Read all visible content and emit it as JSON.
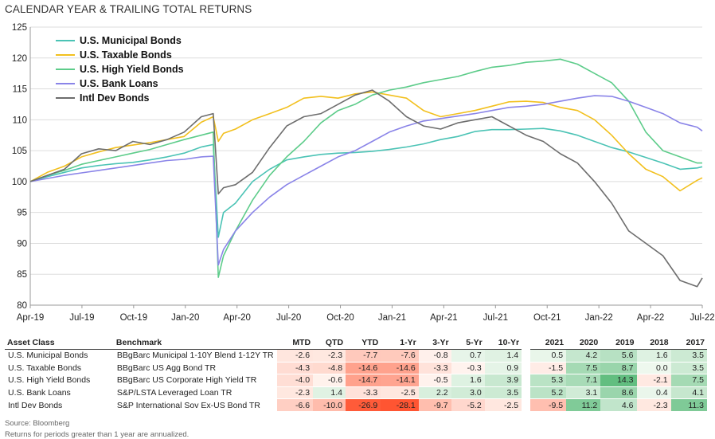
{
  "title": "CALENDAR YEAR & TRAILING TOTAL RETURNS",
  "legend": [
    {
      "label": "U.S.  Municipal Bonds",
      "color": "#4bc3b5"
    },
    {
      "label": "U.S. Taxable Bonds",
      "color": "#f2c01e"
    },
    {
      "label": "U.S. High Yield Bonds",
      "color": "#5dcc8a"
    },
    {
      "label": "U.S. Bank Loans",
      "color": "#8a84e8"
    },
    {
      "label": "Intl Dev Bonds",
      "color": "#6d6d6d"
    }
  ],
  "chart_data": {
    "type": "line",
    "ylim": [
      80,
      125
    ],
    "yticks": [
      80,
      85,
      90,
      95,
      100,
      105,
      110,
      115,
      120,
      125
    ],
    "xticks": [
      "Apr-19",
      "Jul-19",
      "Oct-19",
      "Jan-20",
      "Apr-20",
      "Jul-20",
      "Oct-20",
      "Jan-21",
      "Apr-21",
      "Jul-21",
      "Oct-21",
      "Jan-22",
      "Apr-22",
      "Jul-22"
    ],
    "x": [
      0,
      1,
      2,
      3,
      4,
      5,
      6,
      7,
      8,
      9,
      10,
      10.7,
      11,
      11.3,
      12,
      13,
      14,
      15,
      16,
      17,
      18,
      19,
      20,
      21,
      22,
      23,
      24,
      25,
      26,
      27,
      28,
      29,
      30,
      31,
      32,
      33,
      34,
      35,
      36,
      37,
      38,
      39,
      39.3
    ],
    "series": [
      {
        "name": "U.S.  Municipal Bonds",
        "values": [
          100.0,
          100.8,
          101.5,
          102.2,
          102.6,
          102.9,
          103.1,
          103.5,
          104.0,
          104.6,
          105.6,
          106.0,
          91.0,
          95.0,
          96.5,
          100.0,
          102.0,
          103.5,
          104.0,
          104.4,
          104.6,
          104.7,
          104.9,
          105.2,
          105.6,
          106.1,
          106.8,
          107.3,
          108.1,
          108.4,
          108.4,
          108.5,
          108.6,
          108.2,
          107.5,
          106.5,
          105.5,
          104.8,
          103.9,
          103.0,
          102.0,
          102.2,
          102.4
        ]
      },
      {
        "name": "U.S. Taxable Bonds",
        "values": [
          100.0,
          101.5,
          102.5,
          104.0,
          104.8,
          105.5,
          105.9,
          106.3,
          106.8,
          107.3,
          109.6,
          110.5,
          106.5,
          107.8,
          108.5,
          110.0,
          111.0,
          112.0,
          113.5,
          113.8,
          113.5,
          114.2,
          114.5,
          114.0,
          113.5,
          111.5,
          110.5,
          111.0,
          111.5,
          112.2,
          112.9,
          113.0,
          112.8,
          112.0,
          111.5,
          110.0,
          107.5,
          104.5,
          102.0,
          100.8,
          98.5,
          100.2,
          100.6
        ]
      },
      {
        "name": "U.S. High Yield Bonds",
        "values": [
          100.0,
          101.0,
          101.8,
          102.8,
          103.4,
          104.0,
          104.6,
          105.2,
          106.0,
          106.8,
          107.5,
          108.0,
          84.5,
          88.0,
          92.0,
          97.0,
          101.0,
          104.0,
          106.5,
          109.5,
          111.5,
          112.5,
          114.0,
          114.8,
          115.3,
          116.0,
          116.5,
          117.0,
          117.8,
          118.5,
          118.8,
          119.3,
          119.5,
          119.8,
          119.0,
          117.5,
          116.0,
          113.0,
          108.0,
          105.0,
          104.0,
          103.0,
          103.0
        ]
      },
      {
        "name": "U.S. Bank Loans",
        "values": [
          100.0,
          100.5,
          101.0,
          101.4,
          101.8,
          102.2,
          102.6,
          103.0,
          103.4,
          103.6,
          104.0,
          104.1,
          86.5,
          89.0,
          92.0,
          95.0,
          97.5,
          99.5,
          101.0,
          102.5,
          104.0,
          105.0,
          106.5,
          108.0,
          109.0,
          109.8,
          110.2,
          110.6,
          111.0,
          111.5,
          112.0,
          112.2,
          112.5,
          113.0,
          113.5,
          113.9,
          113.8,
          113.0,
          112.0,
          111.0,
          109.5,
          108.8,
          108.2
        ]
      },
      {
        "name": "Intl Dev Bonds",
        "values": [
          100.0,
          101.0,
          102.0,
          104.5,
          105.3,
          105.0,
          106.5,
          106.0,
          106.8,
          108.0,
          110.5,
          111.0,
          98.0,
          99.0,
          99.5,
          101.5,
          105.5,
          109.0,
          110.5,
          111.0,
          112.5,
          114.0,
          114.8,
          113.0,
          110.5,
          109.0,
          108.5,
          109.5,
          110.0,
          110.5,
          109.0,
          107.5,
          106.5,
          104.5,
          103.0,
          100.0,
          96.5,
          92.0,
          90.0,
          88.0,
          84.0,
          83.0,
          84.4
        ]
      }
    ]
  },
  "table": {
    "headers": [
      "Asset Class",
      "Benchmark",
      "MTD",
      "QTD",
      "YTD",
      "1-Yr",
      "3-Yr",
      "5-Yr",
      "10-Yr",
      "2021",
      "2020",
      "2019",
      "2018",
      "2017"
    ],
    "rows": [
      {
        "asset": "U.S. Municipal Bonds",
        "benchmark": "BBgBarc Municipal 1-10Y Blend 1-12Y TR",
        "trailing": [
          "-2.6",
          "-2.3",
          "-7.7",
          "-7.6",
          "-0.8",
          "0.7",
          "1.4"
        ],
        "calendar": [
          "0.5",
          "4.2",
          "5.6",
          "1.6",
          "3.5"
        ]
      },
      {
        "asset": "U.S. Taxable Bonds",
        "benchmark": "BBgBarc US Agg Bond TR",
        "trailing": [
          "-4.3",
          "-4.8",
          "-14.6",
          "-14.6",
          "-3.3",
          "-0.3",
          "0.9"
        ],
        "calendar": [
          "-1.5",
          "7.5",
          "8.7",
          "0.0",
          "3.5"
        ]
      },
      {
        "asset": "U.S. High Yield Bonds",
        "benchmark": "BBgBarc US Corporate High Yield TR",
        "trailing": [
          "-4.0",
          "-0.6",
          "-14.7",
          "-14.1",
          "-0.5",
          "1.6",
          "3.9"
        ],
        "calendar": [
          "5.3",
          "7.1",
          "14.3",
          "-2.1",
          "7.5"
        ]
      },
      {
        "asset": "U.S. Bank Loans",
        "benchmark": "S&P/LSTA Leveraged Loan TR",
        "trailing": [
          "-2.3",
          "1.4",
          "-3.3",
          "-2.5",
          "2.2",
          "3.0",
          "3.5"
        ],
        "calendar": [
          "5.2",
          "3.1",
          "8.6",
          "0.4",
          "4.1"
        ]
      },
      {
        "asset": "Intl Dev Bonds",
        "benchmark": "S&P International Sov Ex-US Bond TR",
        "trailing": [
          "-6.6",
          "-10.0",
          "-26.9",
          "-28.1",
          "-9.7",
          "-5.2",
          "-2.5"
        ],
        "calendar": [
          "-9.5",
          "11.2",
          "4.6",
          "-2.3",
          "11.3"
        ]
      }
    ]
  },
  "footer": {
    "source": "Source: Bloomberg",
    "note": "Returns for periods greater than 1 year are annualized."
  }
}
